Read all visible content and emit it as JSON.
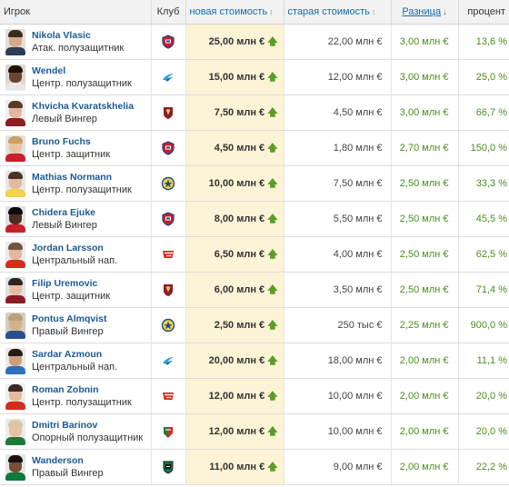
{
  "headers": {
    "player": "Игрок",
    "club": "Клуб",
    "new_value": "новая стоимость",
    "old_value": "старая стоимость",
    "difference": "Разница",
    "percent": "процент"
  },
  "sort_icons": {
    "unsorted": "↕",
    "sorted_desc": "↓"
  },
  "up_arrow": "🡅",
  "colors": {
    "name_link": "#1a5a96",
    "positive": "#4a8f1e",
    "new_value_bg": "#fdf3d6",
    "header_bg": "#f2f2f2"
  },
  "rows": [
    {
      "name": "Nikola Vlasic",
      "position": "Атак. полузащитник",
      "club_icon": "cska-icon",
      "new_value": "25,00 млн €",
      "old_value": "22,00 млн €",
      "difference": "3,00 млн €",
      "percent": "13,6 %"
    },
    {
      "name": "Wendel",
      "position": "Центр. полузащитник",
      "club_icon": "zenit-icon",
      "new_value": "15,00 млн €",
      "old_value": "12,00 млн €",
      "difference": "3,00 млн €",
      "percent": "25,0 %"
    },
    {
      "name": "Khvicha Kvaratskhelia",
      "position": "Левый Вингер",
      "club_icon": "rubin-icon",
      "new_value": "7,50 млн €",
      "old_value": "4,50 млн €",
      "difference": "3,00 млн €",
      "percent": "66,7 %"
    },
    {
      "name": "Bruno Fuchs",
      "position": "Центр. защитник",
      "club_icon": "cska-icon",
      "new_value": "4,50 млн €",
      "old_value": "1,80 млн €",
      "difference": "2,70 млн €",
      "percent": "150,0 %"
    },
    {
      "name": "Mathias Normann",
      "position": "Центр. полузащитник",
      "club_icon": "rostov-icon",
      "new_value": "10,00 млн €",
      "old_value": "7,50 млн €",
      "difference": "2,50 млн €",
      "percent": "33,3 %"
    },
    {
      "name": "Chidera Ejuke",
      "position": "Левый Вингер",
      "club_icon": "cska-icon",
      "new_value": "8,00 млн €",
      "old_value": "5,50 млн €",
      "difference": "2,50 млн €",
      "percent": "45,5 %"
    },
    {
      "name": "Jordan Larsson",
      "position": "Центральный нап.",
      "club_icon": "spartak-icon",
      "new_value": "6,50 млн €",
      "old_value": "4,00 млн €",
      "difference": "2,50 млн €",
      "percent": "62,5 %"
    },
    {
      "name": "Filip Uremovic",
      "position": "Центр. защитник",
      "club_icon": "rubin-icon",
      "new_value": "6,00 млн €",
      "old_value": "3,50 млн €",
      "difference": "2,50 млн €",
      "percent": "71,4 %"
    },
    {
      "name": "Pontus Almqvist",
      "position": "Правый Вингер",
      "club_icon": "rostov-icon",
      "new_value": "2,50 млн €",
      "old_value": "250 тыс €",
      "difference": "2,25 млн €",
      "percent": "900,0 %"
    },
    {
      "name": "Sardar Azmoun",
      "position": "Центральный нап.",
      "club_icon": "zenit-icon",
      "new_value": "20,00 млн €",
      "old_value": "18,00 млн €",
      "difference": "2,00 млн €",
      "percent": "11,1 %"
    },
    {
      "name": "Roman Zobnin",
      "position": "Центр. полузащитник",
      "club_icon": "spartak-icon",
      "new_value": "12,00 млн €",
      "old_value": "10,00 млн €",
      "difference": "2,00 млн €",
      "percent": "20,0 %"
    },
    {
      "name": "Dmitri Barinov",
      "position": "Опорный полузащитник",
      "club_icon": "lokomotiv-icon",
      "new_value": "12,00 млн €",
      "old_value": "10,00 млн €",
      "difference": "2,00 млн €",
      "percent": "20,0 %"
    },
    {
      "name": "Wanderson",
      "position": "Правый Вингер",
      "club_icon": "krasnodar-icon",
      "new_value": "11,00 млн €",
      "old_value": "9,00 млн €",
      "difference": "2,00 млн €",
      "percent": "22,2 %"
    }
  ]
}
